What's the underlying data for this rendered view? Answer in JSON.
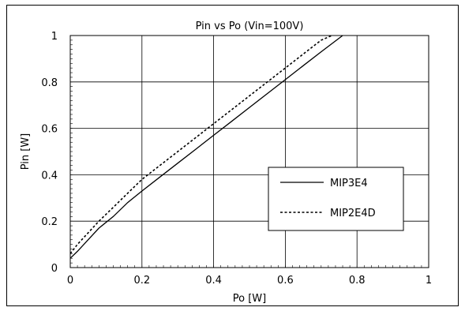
{
  "chart_data": {
    "type": "line",
    "title": "Pin vs Po (Vin=100V)",
    "xlabel": "Po [W]",
    "ylabel": "Pin [W]",
    "xlim": [
      0,
      1
    ],
    "ylim": [
      0,
      1
    ],
    "x_ticks": [
      "0",
      "0.2",
      "0.4",
      "0.6",
      "0.8",
      "1"
    ],
    "y_ticks": [
      "0",
      "0.2",
      "0.4",
      "0.6",
      "0.8",
      "1"
    ],
    "grid": true,
    "legend_position": "center-right",
    "series": [
      {
        "name": "MIP3E4",
        "style": "solid",
        "color": "#000000",
        "x": [
          0,
          0.02,
          0.05,
          0.08,
          0.12,
          0.16,
          0.2,
          0.25,
          0.3,
          0.35,
          0.4,
          0.45,
          0.5,
          0.55,
          0.6,
          0.65,
          0.7,
          0.76
        ],
        "y": [
          0.04,
          0.07,
          0.12,
          0.17,
          0.22,
          0.28,
          0.33,
          0.39,
          0.45,
          0.51,
          0.57,
          0.63,
          0.69,
          0.75,
          0.81,
          0.87,
          0.93,
          1.0
        ]
      },
      {
        "name": "MIP2E4D",
        "style": "dashed",
        "color": "#000000",
        "x": [
          0,
          0.02,
          0.05,
          0.08,
          0.12,
          0.16,
          0.2,
          0.25,
          0.3,
          0.35,
          0.4,
          0.45,
          0.5,
          0.55,
          0.6,
          0.65,
          0.7,
          0.73
        ],
        "y": [
          0.06,
          0.1,
          0.15,
          0.2,
          0.26,
          0.32,
          0.38,
          0.44,
          0.5,
          0.56,
          0.62,
          0.68,
          0.74,
          0.8,
          0.86,
          0.92,
          0.98,
          1.0
        ]
      }
    ]
  }
}
